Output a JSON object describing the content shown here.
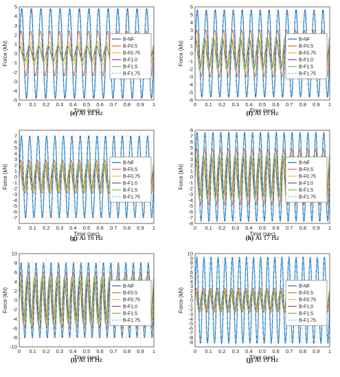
{
  "series_colors": [
    "#1f4e9c",
    "#d9531e",
    "#e8b21f",
    "#7e2f8e",
    "#77ac30",
    "#4dbeee"
  ],
  "chart_data": [
    {
      "type": "line",
      "caption_label": "(e)",
      "caption_text": "At 14 Hz",
      "freq": 14,
      "xlabel": "Time (sec)",
      "ylabel": "Force (kN)",
      "xlim": [
        0,
        1
      ],
      "ylim": [
        -5,
        5
      ],
      "xticks": [
        0,
        0.1,
        0.2,
        0.3,
        0.4,
        0.5,
        0.6,
        0.7,
        0.8,
        0.9,
        1
      ],
      "xtick_labels": [
        "0",
        "0.1",
        "0.2",
        "0.3",
        "0.4",
        "0.5",
        "0.6",
        "0.7",
        "0.8",
        "0.9",
        "1"
      ],
      "yticks": [
        -5,
        -4,
        -3,
        -2,
        -1,
        0,
        1,
        2,
        3,
        4,
        5
      ],
      "grid": true,
      "legend_position": "center-right",
      "series": [
        {
          "name": "B-NF",
          "amplitude": 4.8
        },
        {
          "name": "B-F0.5",
          "amplitude": 2.4
        },
        {
          "name": "B-F0.75",
          "amplitude": 1.2
        },
        {
          "name": "B-F1.0",
          "amplitude": 0.6
        },
        {
          "name": "B-F1.5",
          "amplitude": 0.9
        },
        {
          "name": "B-F1.75",
          "amplitude": 4.6
        }
      ]
    },
    {
      "type": "line",
      "caption_label": "(f)",
      "caption_text": "At 15 Hz",
      "freq": 15,
      "xlabel": "Time (sec)",
      "ylabel": "Force (kN)",
      "xlim": [
        0,
        1
      ],
      "ylim": [
        -6,
        6
      ],
      "xticks": [
        0,
        0.1,
        0.2,
        0.3,
        0.4,
        0.5,
        0.6,
        0.7,
        0.8,
        0.9,
        1
      ],
      "xtick_labels": [
        "0",
        "0.1",
        "0.2",
        "0.3",
        "0.4",
        "0.5",
        "0.6",
        "0.7",
        "0.8",
        "0.9",
        "1"
      ],
      "yticks": [
        -6,
        -5,
        -4,
        -3,
        -2,
        -1,
        0,
        1,
        2,
        3,
        4,
        5,
        6
      ],
      "grid": true,
      "legend_position": "center-right",
      "series": [
        {
          "name": "B-NF",
          "amplitude": 5.6
        },
        {
          "name": "B-F0.5",
          "amplitude": 3.0
        },
        {
          "name": "B-F0.75",
          "amplitude": 1.8
        },
        {
          "name": "B-F1.0",
          "amplitude": 1.4
        },
        {
          "name": "B-F1.5",
          "amplitude": 2.1
        },
        {
          "name": "B-F1.75",
          "amplitude": 5.4
        }
      ]
    },
    {
      "type": "line",
      "caption_label": "(g)",
      "caption_text": "At 16 Hz",
      "freq": 16,
      "xlabel": "Time (sec)",
      "ylabel": "Force (kN)",
      "xlim": [
        0,
        1
      ],
      "ylim": [
        -8,
        8
      ],
      "xticks": [
        0,
        0.1,
        0.2,
        0.3,
        0.4,
        0.5,
        0.6,
        0.7,
        0.8,
        0.9,
        1
      ],
      "xtick_labels": [
        "0",
        "0.1",
        "0.2",
        "0.3",
        "0.4",
        "0.5",
        "0.6",
        "0.7",
        "0.8",
        "0.9",
        "1"
      ],
      "yticks": [
        -8,
        -7,
        -6,
        -5,
        -4,
        -3,
        -2,
        -1,
        0,
        1,
        2,
        3,
        4,
        5,
        6,
        7,
        8
      ],
      "ytick_labels": [
        "",
        "-7",
        "-6",
        "-5",
        "-4",
        "-3",
        "-2",
        "-1",
        "0",
        "1",
        "2",
        "3",
        "4",
        "5",
        "6",
        "7",
        ""
      ],
      "grid": true,
      "legend_position": "center-right",
      "series": [
        {
          "name": "B-NF",
          "amplitude": 7.0
        },
        {
          "name": "B-F0.5",
          "amplitude": 2.8
        },
        {
          "name": "B-F0.75",
          "amplitude": 2.2
        },
        {
          "name": "B-F1.0",
          "amplitude": 1.6
        },
        {
          "name": "B-F1.5",
          "amplitude": 2.4
        },
        {
          "name": "B-F1.75",
          "amplitude": 6.8
        }
      ]
    },
    {
      "type": "line",
      "caption_label": "(h)",
      "caption_text": "At 17 Hz",
      "freq": 17,
      "xlabel": "Time (sec)",
      "ylabel": "Force (kN)",
      "xlim": [
        0,
        1
      ],
      "ylim": [
        -8,
        8
      ],
      "xticks": [
        0,
        0.1,
        0.2,
        0.3,
        0.4,
        0.5,
        0.6,
        0.7,
        0.8,
        0.9,
        1
      ],
      "xtick_labels": [
        "0",
        "0.1",
        "0.2",
        "0.3",
        "0.4",
        "0.5",
        "0.6",
        "0.7",
        "0.8",
        "0.9",
        "1"
      ],
      "yticks": [
        -8,
        -7,
        -6,
        -5,
        -4,
        -3,
        -2,
        -1,
        0,
        1,
        2,
        3,
        4,
        5,
        6,
        7,
        8
      ],
      "grid": true,
      "legend_position": "center-right",
      "series": [
        {
          "name": "B-NF",
          "amplitude": 7.6
        },
        {
          "name": "B-F0.5",
          "amplitude": 4.8
        },
        {
          "name": "B-F0.75",
          "amplitude": 3.4
        },
        {
          "name": "B-F1.0",
          "amplitude": 2.8
        },
        {
          "name": "B-F1.5",
          "amplitude": 3.8
        },
        {
          "name": "B-F1.75",
          "amplitude": 7.4
        }
      ]
    },
    {
      "type": "line",
      "caption_label": "(i)",
      "caption_text": "At 18 Hz",
      "freq": 18,
      "xlabel": "Time (sec)",
      "ylabel": "Force (kN)",
      "xlim": [
        0,
        1
      ],
      "ylim": [
        -10,
        10
      ],
      "xticks": [
        0,
        0.1,
        0.2,
        0.3,
        0.4,
        0.5,
        0.6,
        0.7,
        0.8,
        0.9,
        1
      ],
      "xtick_labels": [
        "0",
        "0.1",
        "0.2",
        "0.3",
        "0.4",
        "0.5",
        "0.6",
        "0.7",
        "0.8",
        "0.9",
        "1"
      ],
      "yticks": [
        -10,
        -8,
        -6,
        -4,
        -2,
        0,
        2,
        4,
        6,
        8,
        10
      ],
      "grid": true,
      "legend_position": "center-right",
      "series": [
        {
          "name": "B-NF",
          "amplitude": 8.0
        },
        {
          "name": "B-F0.5",
          "amplitude": 6.0
        },
        {
          "name": "B-F0.75",
          "amplitude": 4.6
        },
        {
          "name": "B-F1.0",
          "amplitude": 3.6
        },
        {
          "name": "B-F1.5",
          "amplitude": 5.0
        },
        {
          "name": "B-F1.75",
          "amplitude": 7.8
        }
      ]
    },
    {
      "type": "line",
      "caption_label": "(j)",
      "caption_text": "At 19 Hz",
      "freq": 19,
      "xlabel": "Time (sec)",
      "ylabel": "Force (kN)",
      "xlim": [
        0,
        1
      ],
      "ylim": [
        -10,
        10
      ],
      "xticks": [
        0,
        0.1,
        0.2,
        0.3,
        0.4,
        0.5,
        0.6,
        0.7,
        0.8,
        0.9,
        1
      ],
      "xtick_labels": [
        "0",
        "0.1",
        "0.2",
        "0.3",
        "0.4",
        "0.5",
        "0.6",
        "0.7",
        "0.8",
        "0.9",
        "1"
      ],
      "yticks": [
        -10,
        -9,
        -8,
        -7,
        -6,
        -5,
        -4,
        -3,
        -2,
        -1,
        0,
        1,
        2,
        3,
        4,
        5,
        6,
        7,
        8,
        9,
        10
      ],
      "ytick_labels": [
        "",
        "-9",
        "-8",
        "-7",
        "-6",
        "-5",
        "-4",
        "-3",
        "-2",
        "-1",
        "0",
        "1",
        "2",
        "3",
        "4",
        "5",
        "6",
        "7",
        "8",
        "9",
        "10"
      ],
      "grid": true,
      "legend_position": "center-right",
      "series": [
        {
          "name": "B-NF",
          "amplitude": 9.2
        },
        {
          "name": "B-F0.5",
          "amplitude": 2.6
        },
        {
          "name": "B-F0.75",
          "amplitude": 2.0
        },
        {
          "name": "B-F1.0",
          "amplitude": 1.6
        },
        {
          "name": "B-F1.5",
          "amplitude": 2.2
        },
        {
          "name": "B-F1.75",
          "amplitude": 9.0
        }
      ]
    }
  ]
}
